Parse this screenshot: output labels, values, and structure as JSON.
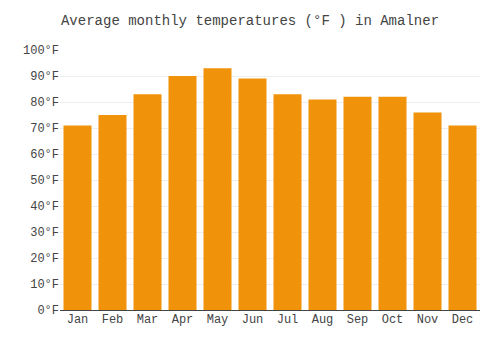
{
  "chart_data": {
    "type": "bar",
    "title": "Average monthly temperatures (°F ) in Amalner",
    "categories": [
      "Jan",
      "Feb",
      "Mar",
      "Apr",
      "May",
      "Jun",
      "Jul",
      "Aug",
      "Sep",
      "Oct",
      "Nov",
      "Dec"
    ],
    "values": [
      71,
      75,
      83,
      90,
      93,
      89,
      83,
      81,
      82,
      82,
      76,
      71
    ],
    "color": "#F0920A",
    "ylim": [
      0,
      100
    ],
    "yticks": [
      {
        "value": 0,
        "label": "0°F"
      },
      {
        "value": 10,
        "label": "10°F"
      },
      {
        "value": 20,
        "label": "20°F"
      },
      {
        "value": 30,
        "label": "30°F"
      },
      {
        "value": 40,
        "label": "40°F"
      },
      {
        "value": 50,
        "label": "50°F"
      },
      {
        "value": 60,
        "label": "60°F"
      },
      {
        "value": 70,
        "label": "70°F"
      },
      {
        "value": 80,
        "label": "80°F"
      },
      {
        "value": 90,
        "label": "90°F"
      },
      {
        "value": 100,
        "label": "100°F"
      }
    ],
    "grid": true
  }
}
